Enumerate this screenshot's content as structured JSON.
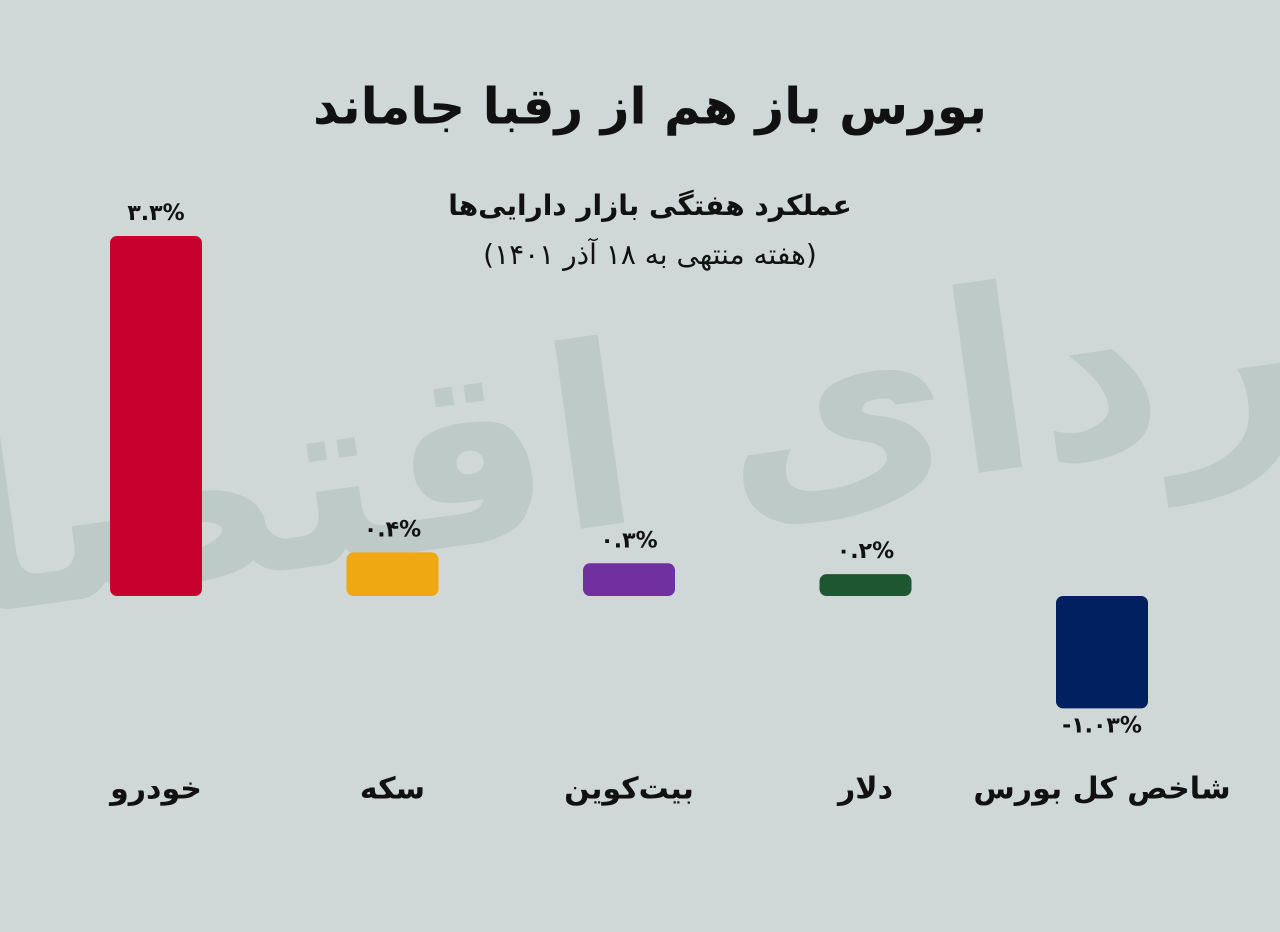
{
  "chart_data": {
    "type": "bar",
    "title": "بورس باز هم از رقبا جاماند",
    "subtitle": "عملکرد هفتگی بازار دارایی‌ها",
    "subtitle2": "(هفته منتهی به ۱۸ آذر ۱۴۰۱)",
    "watermark": "فردای اقتصاد",
    "categories": [
      "خودرو",
      "سکه",
      "بیت‌کوین",
      "دلار",
      "شاخص کل بورس"
    ],
    "values": [
      3.3,
      0.4,
      0.3,
      0.2,
      -1.03
    ],
    "value_labels": [
      "۳.۳%",
      "۰.۴%",
      "۰.۳%",
      "۰.۲%",
      "-۱.۰۳%"
    ],
    "colors": [
      "#c8002d",
      "#f0a812",
      "#7030a0",
      "#1e5631",
      "#002060"
    ]
  }
}
